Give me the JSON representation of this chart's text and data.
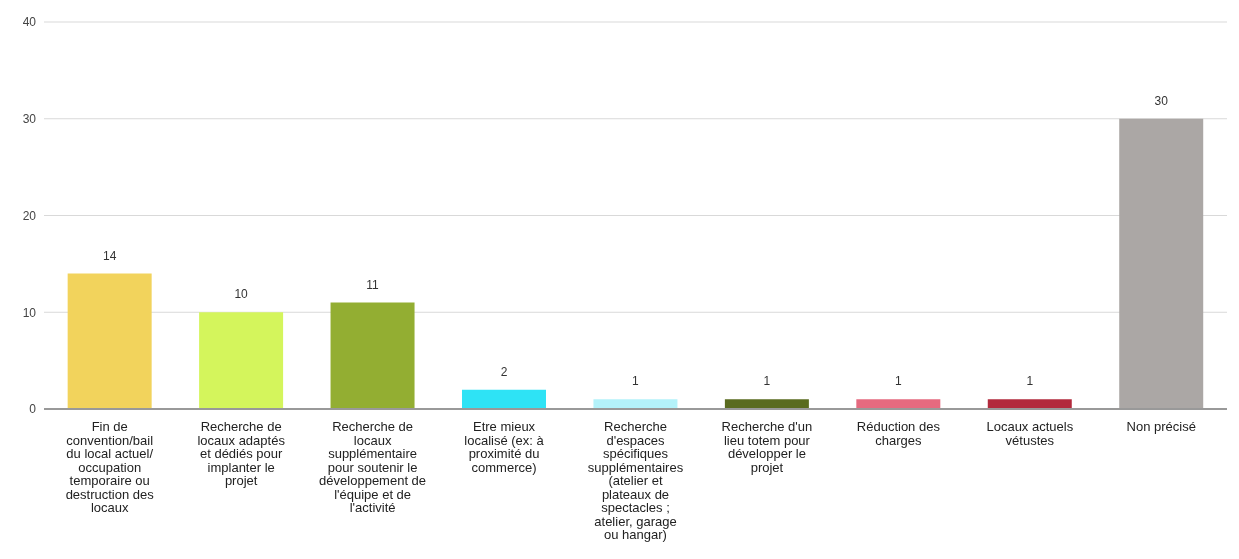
{
  "chart_data": {
    "type": "bar",
    "categories": [
      "Fin de convention/bail du local actuel/ occupation temporaire ou destruction des locaux",
      "Recherche de locaux adaptés et dédiés pour implanter le projet",
      "Recherche de locaux supplémentaire pour soutenir le développement de l'équipe et de l'activité",
      "Etre mieux localisé (ex: à proximité du commerce)",
      "Recherche d'espaces spécifiques supplémentaires (atelier et plateaux de spectacles ; atelier, garage ou hangar)",
      "Recherche d'un lieu totem pour développer le projet",
      "Réduction des charges",
      "Locaux actuels vétustes",
      "Non précisé"
    ],
    "values": [
      14,
      10,
      11,
      2,
      1,
      1,
      1,
      1,
      30
    ],
    "colors": [
      "#f2d35c",
      "#d4f55c",
      "#93ae32",
      "#2ee3f5",
      "#b3f2fa",
      "#5a6b1f",
      "#e56a7f",
      "#b22a3c",
      "#aba7a5"
    ],
    "ylim": [
      0,
      40
    ],
    "yticks": [
      0,
      10,
      20,
      30,
      40
    ],
    "grid": "y",
    "data_labels": true,
    "legend": false
  }
}
